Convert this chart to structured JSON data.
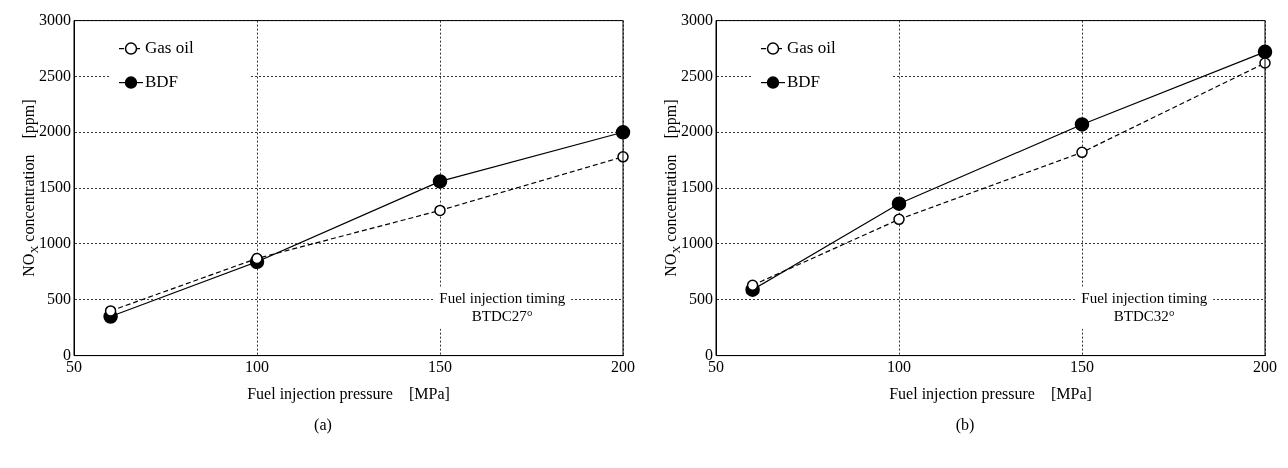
{
  "chart_data": [
    {
      "type": "line",
      "title": "(a)",
      "xlabel": "Fuel injection pressure    [MPa]",
      "ylabel": "NO$_{X}$ concentration    [ppm]",
      "x": [
        60,
        100,
        150,
        200
      ],
      "xlim": [
        50,
        200
      ],
      "xticks": [
        50,
        100,
        150,
        200
      ],
      "ylim": [
        0,
        3000
      ],
      "yticks": [
        0,
        500,
        1000,
        1500,
        2000,
        2500,
        3000
      ],
      "grid": true,
      "legend": "top left",
      "marker": "circle",
      "annotations": [
        "Fuel injection timing\nBTDC27°"
      ],
      "series": [
        {
          "name": "Gas oil",
          "color": "#000000",
          "line_style": "dashed",
          "values": [
            400,
            870,
            1300,
            1780
          ]
        },
        {
          "name": "BDF",
          "color": "#000000",
          "line_style": "solid",
          "values": [
            350,
            840,
            1560,
            2000
          ]
        }
      ]
    },
    {
      "type": "line",
      "title": "(b)",
      "xlabel": "Fuel injection pressure    [MPa]",
      "ylabel": "NO$_{X}$ concentration    [ppm]",
      "x": [
        60,
        100,
        150,
        200
      ],
      "xlim": [
        50,
        200
      ],
      "xticks": [
        50,
        100,
        150,
        200
      ],
      "ylim": [
        0,
        3000
      ],
      "yticks": [
        0,
        500,
        1000,
        1500,
        2000,
        2500,
        3000
      ],
      "grid": true,
      "legend": "top left",
      "marker": "circle",
      "annotations": [
        "Fuel injection timing\nBTDC32°"
      ],
      "series": [
        {
          "name": "Gas oil",
          "color": "#000000",
          "line_style": "dashed",
          "values": [
            630,
            1220,
            1820,
            2620
          ]
        },
        {
          "name": "BDF",
          "color": "#000000",
          "line_style": "solid",
          "values": [
            590,
            1360,
            2070,
            2720
          ]
        }
      ]
    }
  ]
}
